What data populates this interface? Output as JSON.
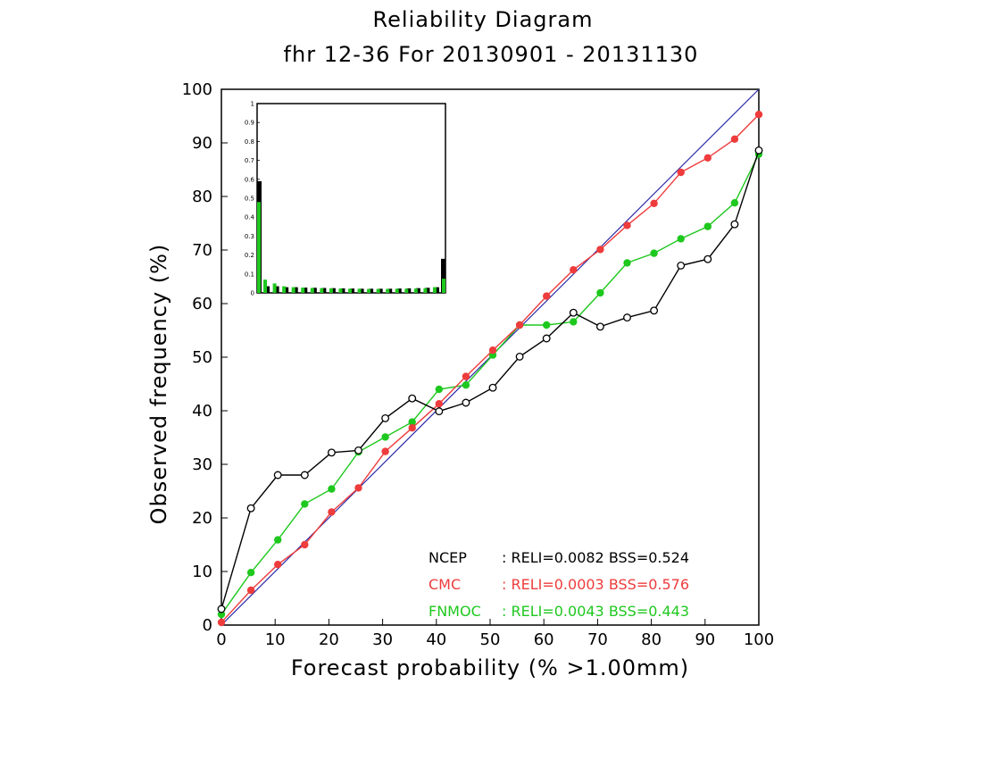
{
  "chart_data": {
    "type": "line",
    "title": "Reliability Diagram",
    "subtitle": "fhr 12-36 For 20130901 - 20131130",
    "xlabel": "Forecast probability (% >1.00mm)",
    "ylabel": "Observed frequency (%)",
    "xlim": [
      0,
      100
    ],
    "ylim": [
      0,
      100
    ],
    "x_ticks": [
      "0",
      "10",
      "20",
      "30",
      "40",
      "50",
      "60",
      "70",
      "80",
      "90",
      "100"
    ],
    "y_ticks": [
      "0",
      "10",
      "20",
      "30",
      "40",
      "50",
      "60",
      "70",
      "80",
      "90",
      "100"
    ],
    "grid": false,
    "diagonal": {
      "from": [
        0,
        0
      ],
      "to": [
        100,
        100
      ],
      "color": "#2a2aa8"
    },
    "x": [
      0,
      5.5,
      10.5,
      15.5,
      20.5,
      25.5,
      30.5,
      35.5,
      40.5,
      45.5,
      50.5,
      55.5,
      60.5,
      65.5,
      70.5,
      75.5,
      80.5,
      85.5,
      90.5,
      95.5,
      100
    ],
    "series": [
      {
        "name": "NCEP",
        "color": "#000000",
        "marker": "open-circle",
        "values": [
          3,
          21.8,
          28,
          28,
          32.2,
          32.6,
          38.6,
          42.3,
          39.9,
          41.5,
          44.3,
          50.1,
          53.5,
          58.3,
          55.7,
          57.4,
          58.7,
          67.1,
          68.3,
          74.8,
          88.6
        ]
      },
      {
        "name": "CMC",
        "color": "#ee3c3c",
        "marker": "filled-circle",
        "values": [
          0.5,
          6.5,
          11.3,
          15,
          21.1,
          25.6,
          32.4,
          36.8,
          41.3,
          46.4,
          51.3,
          56,
          61.4,
          66.3,
          70.1,
          74.6,
          78.7,
          84.5,
          87.2,
          90.7,
          95.3
        ]
      },
      {
        "name": "FNMOC",
        "color": "#1ec81e",
        "marker": "filled-circle",
        "values": [
          2,
          9.8,
          15.9,
          22.6,
          25.4,
          32.3,
          35.1,
          37.9,
          44,
          44.8,
          50.4,
          56,
          56,
          56.6,
          62,
          67.6,
          69.4,
          72.1,
          74.4,
          78.8,
          87.9
        ]
      }
    ],
    "legend": {
      "position": "bottom-right",
      "rows": [
        {
          "name": "NCEP",
          "text": ": RELI=0.0082  BSS=0.524"
        },
        {
          "name": "CMC",
          "text": ": RELI=0.0003  BSS=0.576"
        },
        {
          "name": "FNMOC",
          "text": ": RELI=0.0043  BSS=0.443"
        }
      ]
    },
    "inset": {
      "type": "bar",
      "position": "top-left",
      "ylim": [
        0,
        1
      ],
      "y_ticks": [
        "0",
        "0.1",
        "0.2",
        "0.3",
        "0.4",
        "0.5",
        "0.6",
        "0.7",
        "0.8",
        "0.9",
        "1"
      ],
      "bins": 21,
      "series": [
        {
          "name": "NCEP",
          "color": "#000000",
          "values": [
            0.59,
            0.035,
            0.035,
            0.03,
            0.03,
            0.028,
            0.027,
            0.026,
            0.025,
            0.024,
            0.023,
            0.022,
            0.022,
            0.022,
            0.022,
            0.023,
            0.024,
            0.025,
            0.027,
            0.03,
            0.18
          ]
        },
        {
          "name": "FNMOC",
          "color": "#1ec81e",
          "values": [
            0.48,
            0.07,
            0.05,
            0.035,
            0.03,
            0.028,
            0.026,
            0.025,
            0.024,
            0.023,
            0.022,
            0.022,
            0.021,
            0.021,
            0.021,
            0.022,
            0.022,
            0.023,
            0.025,
            0.03,
            0.075
          ]
        }
      ]
    }
  }
}
